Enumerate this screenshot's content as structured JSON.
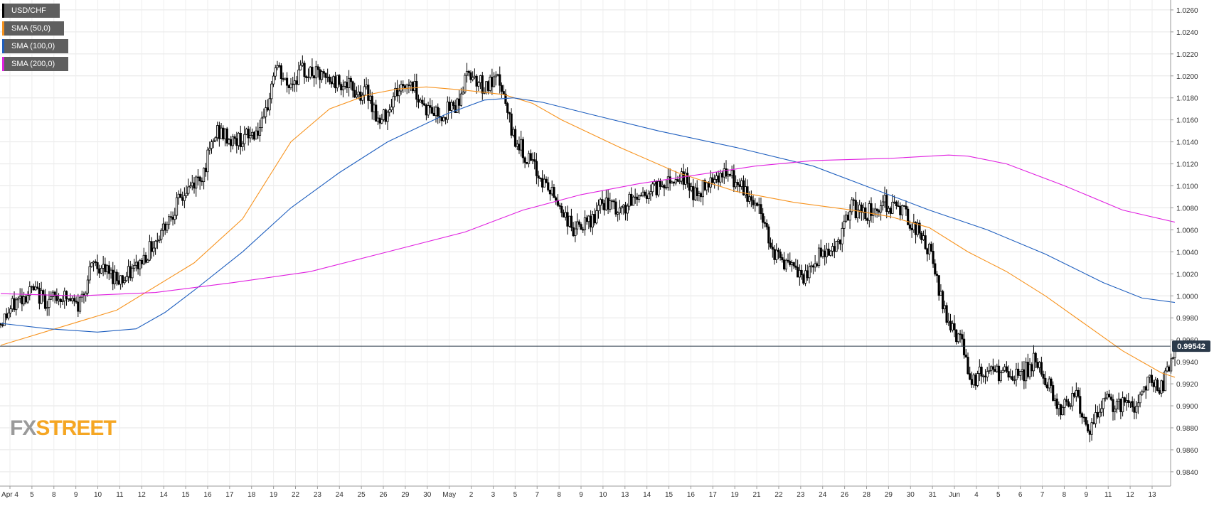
{
  "legend": [
    {
      "label": "USD/CHF",
      "color": "#000000"
    },
    {
      "label": "SMA (50,0)",
      "color": "#f7931e"
    },
    {
      "label": "SMA (100,0)",
      "color": "#1f5fbf"
    },
    {
      "label": "SMA (200,0)",
      "color": "#e020e0"
    }
  ],
  "logo": {
    "part1": "FX",
    "part2": "STREET"
  },
  "chart_data": {
    "type": "candlestick",
    "y_ticks": [
      "1.0260",
      "1.0240",
      "1.0220",
      "1.0200",
      "1.0180",
      "1.0160",
      "1.0140",
      "1.0120",
      "1.0100",
      "1.0080",
      "1.0060",
      "1.0040",
      "1.0020",
      "1.0000",
      "0.9980",
      "0.9960",
      "0.9940",
      "0.9920",
      "0.9900",
      "0.9880",
      "0.9860",
      "0.9840"
    ],
    "ylim": [
      0.9827,
      1.0269
    ],
    "x_ticks": [
      "Apr 4",
      "5",
      "8",
      "9",
      "10",
      "11",
      "12",
      "14",
      "15",
      "16",
      "17",
      "18",
      "19",
      "22",
      "23",
      "24",
      "25",
      "26",
      "29",
      "30",
      "May",
      "2",
      "3",
      "5",
      "7",
      "8",
      "9",
      "10",
      "13",
      "14",
      "15",
      "16",
      "17",
      "19",
      "21",
      "22",
      "23",
      "24",
      "26",
      "28",
      "29",
      "30",
      "31",
      "Jun",
      "4",
      "5",
      "6",
      "7",
      "8",
      "9",
      "11",
      "12",
      "13"
    ],
    "last_price": "0.99542",
    "last_value": 0.99542,
    "close_anchors": [
      [
        0,
        0.9975
      ],
      [
        8,
        0.9995
      ],
      [
        16,
        1.0005
      ],
      [
        24,
        0.9995
      ],
      [
        32,
        1.0
      ],
      [
        40,
        0.999
      ],
      [
        48,
        1.003
      ],
      [
        56,
        1.002
      ],
      [
        64,
        1.0015
      ],
      [
        72,
        1.003
      ],
      [
        80,
        1.005
      ],
      [
        88,
        1.0075
      ],
      [
        96,
        1.0095
      ],
      [
        104,
        1.011
      ],
      [
        112,
        1.015
      ],
      [
        120,
        1.014
      ],
      [
        128,
        1.0145
      ],
      [
        136,
        1.0155
      ],
      [
        142,
        1.021
      ],
      [
        148,
        1.019
      ],
      [
        156,
        1.0205
      ],
      [
        164,
        1.02
      ],
      [
        170,
        1.0195
      ],
      [
        176,
        1.0195
      ],
      [
        184,
        1.0185
      ],
      [
        190,
        1.0185
      ],
      [
        196,
        1.0155
      ],
      [
        204,
        1.0185
      ],
      [
        212,
        1.0195
      ],
      [
        220,
        1.017
      ],
      [
        228,
        1.0165
      ],
      [
        236,
        1.0175
      ],
      [
        242,
        1.0205
      ],
      [
        250,
        1.019
      ],
      [
        258,
        1.0195
      ],
      [
        264,
        1.015
      ],
      [
        272,
        1.0125
      ],
      [
        280,
        1.0105
      ],
      [
        288,
        1.0085
      ],
      [
        296,
        1.006
      ],
      [
        304,
        1.0065
      ],
      [
        312,
        1.0085
      ],
      [
        320,
        1.0075
      ],
      [
        328,
        1.009
      ],
      [
        336,
        1.0095
      ],
      [
        344,
        1.0105
      ],
      [
        352,
        1.011
      ],
      [
        360,
        1.009
      ],
      [
        368,
        1.011
      ],
      [
        376,
        1.011
      ],
      [
        384,
        1.0095
      ],
      [
        392,
        1.008
      ],
      [
        400,
        1.004
      ],
      [
        408,
        1.0025
      ],
      [
        416,
        1.0015
      ],
      [
        424,
        1.004
      ],
      [
        432,
        1.0045
      ],
      [
        440,
        1.008
      ],
      [
        448,
        1.0075
      ],
      [
        456,
        1.0085
      ],
      [
        464,
        1.008
      ],
      [
        472,
        1.0065
      ],
      [
        480,
        1.004
      ],
      [
        488,
        0.9985
      ],
      [
        496,
        0.996
      ],
      [
        502,
        0.9925
      ],
      [
        510,
        0.993
      ],
      [
        518,
        0.993
      ],
      [
        526,
        0.9925
      ],
      [
        534,
        0.994
      ],
      [
        540,
        0.9925
      ],
      [
        548,
        0.9895
      ],
      [
        556,
        0.9915
      ],
      [
        562,
        0.987
      ],
      [
        570,
        0.9905
      ],
      [
        578,
        0.99
      ],
      [
        586,
        0.99
      ],
      [
        594,
        0.9925
      ],
      [
        600,
        0.9915
      ],
      [
        607,
        0.9954
      ]
    ],
    "sma": [
      {
        "name": "SMA (50,0)",
        "color": "#f7931e",
        "points": [
          [
            0,
            0.9955
          ],
          [
            60,
            0.9987
          ],
          [
            100,
            1.003
          ],
          [
            125,
            1.007
          ],
          [
            150,
            1.014
          ],
          [
            170,
            1.017
          ],
          [
            190,
            1.0183
          ],
          [
            205,
            1.0188
          ],
          [
            220,
            1.019
          ],
          [
            240,
            1.0187
          ],
          [
            260,
            1.0183
          ],
          [
            275,
            1.0175
          ],
          [
            290,
            1.016
          ],
          [
            320,
            1.0135
          ],
          [
            350,
            1.0112
          ],
          [
            380,
            1.0095
          ],
          [
            410,
            1.0085
          ],
          [
            440,
            1.0078
          ],
          [
            460,
            1.0072
          ],
          [
            480,
            1.0062
          ],
          [
            500,
            1.004
          ],
          [
            520,
            1.0022
          ],
          [
            540,
            1.0
          ],
          [
            560,
            0.9975
          ],
          [
            580,
            0.995
          ],
          [
            600,
            0.993
          ],
          [
            607,
            0.9926
          ]
        ]
      },
      {
        "name": "SMA (100,0)",
        "color": "#1f5fbf",
        "points": [
          [
            0,
            0.9975
          ],
          [
            25,
            0.997
          ],
          [
            50,
            0.9967
          ],
          [
            70,
            0.997
          ],
          [
            85,
            0.9985
          ],
          [
            100,
            1.0005
          ],
          [
            125,
            1.004
          ],
          [
            150,
            1.008
          ],
          [
            175,
            1.0112
          ],
          [
            200,
            1.014
          ],
          [
            230,
            1.0165
          ],
          [
            250,
            1.0178
          ],
          [
            265,
            1.018
          ],
          [
            280,
            1.0176
          ],
          [
            305,
            1.0165
          ],
          [
            340,
            1.015
          ],
          [
            380,
            1.0135
          ],
          [
            420,
            1.0118
          ],
          [
            450,
            1.0098
          ],
          [
            480,
            1.0078
          ],
          [
            510,
            1.006
          ],
          [
            540,
            1.0038
          ],
          [
            570,
            1.0012
          ],
          [
            590,
            0.9998
          ],
          [
            607,
            0.9994
          ]
        ]
      },
      {
        "name": "SMA (200,0)",
        "color": "#e020e0",
        "points": [
          [
            0,
            1.0002
          ],
          [
            40,
            1.0
          ],
          [
            80,
            1.0003
          ],
          [
            120,
            1.0012
          ],
          [
            160,
            1.0022
          ],
          [
            200,
            1.004
          ],
          [
            240,
            1.0058
          ],
          [
            270,
            1.0078
          ],
          [
            300,
            1.0092
          ],
          [
            330,
            1.0102
          ],
          [
            360,
            1.011
          ],
          [
            390,
            1.0118
          ],
          [
            420,
            1.0123
          ],
          [
            460,
            1.0125
          ],
          [
            490,
            1.0128
          ],
          [
            500,
            1.0127
          ],
          [
            520,
            1.012
          ],
          [
            550,
            1.01
          ],
          [
            580,
            1.0078
          ],
          [
            607,
            1.0067
          ]
        ]
      }
    ]
  }
}
